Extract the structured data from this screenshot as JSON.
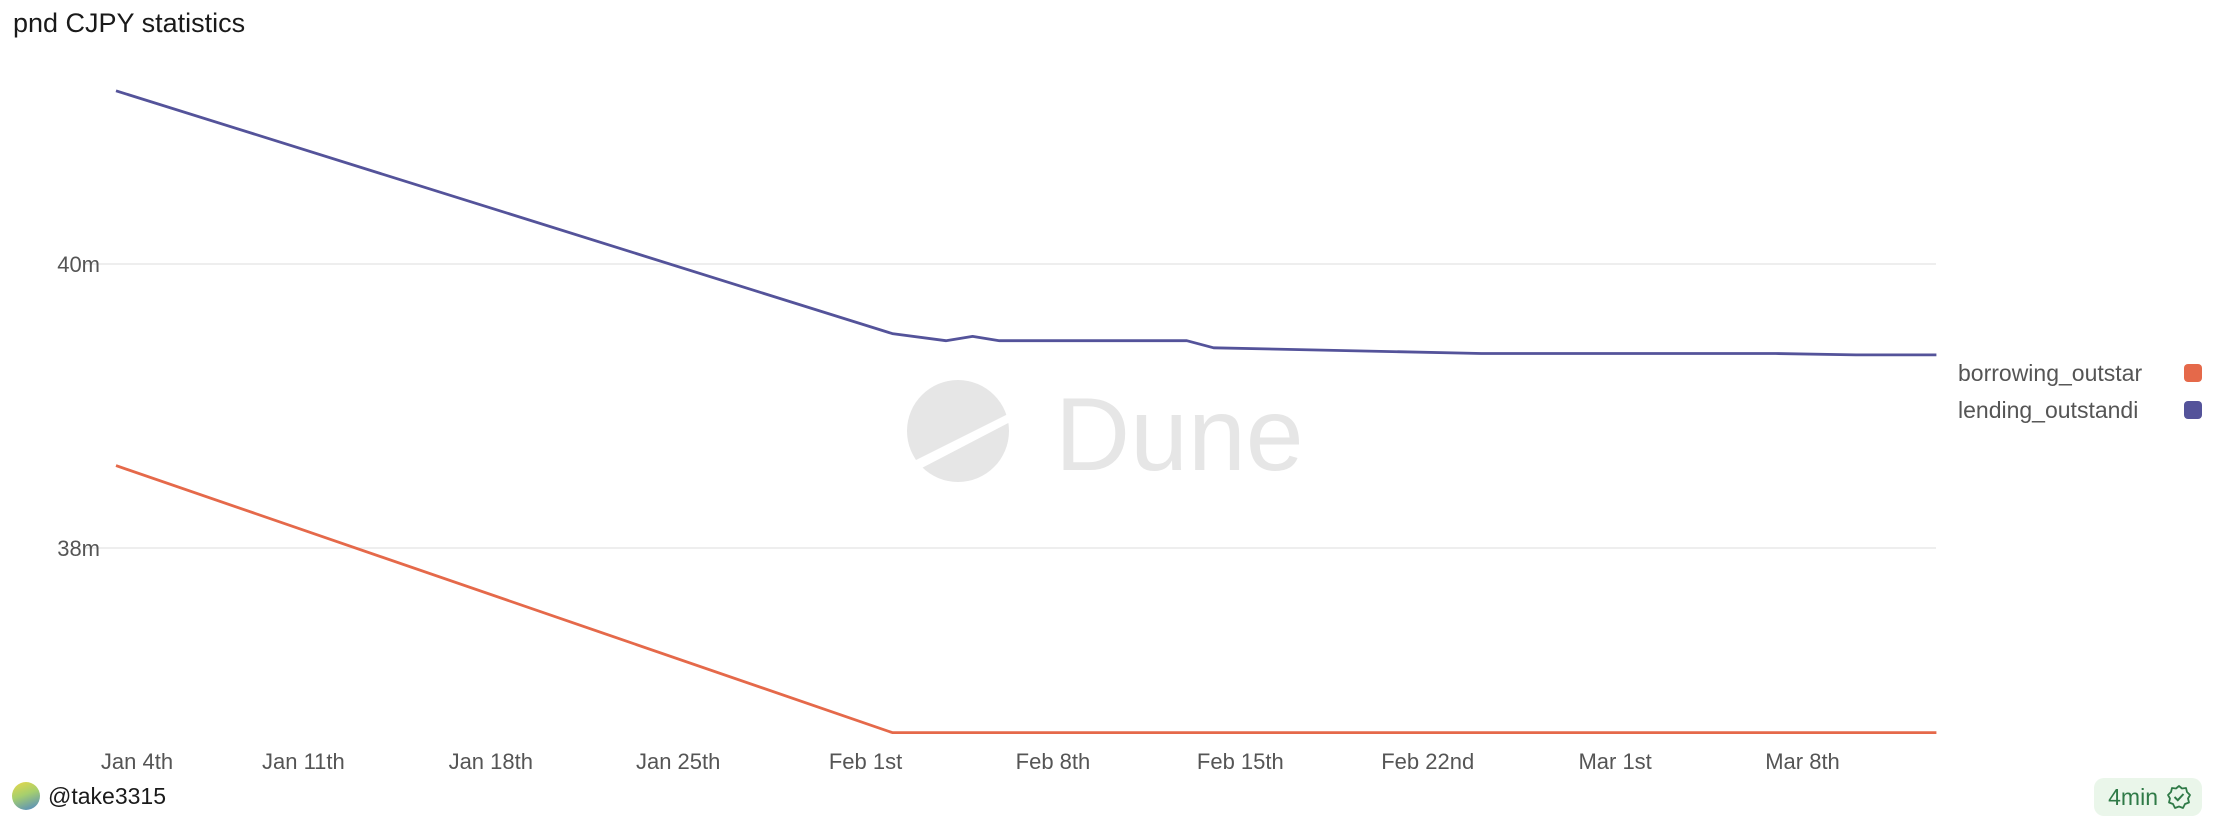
{
  "chart_data": {
    "type": "line",
    "title": "pnd CJPY statistics",
    "xlabel": "",
    "ylabel": "",
    "x_tick_labels": [
      "Jan 4th",
      "Jan 11th",
      "Jan 18th",
      "Jan 25th",
      "Feb 1st",
      "Feb 8th",
      "Feb 15th",
      "Feb 22nd",
      "Mar 1st",
      "Mar 8th"
    ],
    "y_ticks": [
      {
        "value": 38,
        "label": "38m"
      },
      {
        "value": 40,
        "label": "40m"
      }
    ],
    "ylim": [
      36.55,
      41.45
    ],
    "x_domain_days_from_jan4": [
      0,
      68
    ],
    "grid": true,
    "legend_position": "right",
    "series": [
      {
        "name": "borrowing_outstar",
        "color": "#e5694a",
        "points": [
          [
            0,
            38.58
          ],
          [
            29,
            36.7
          ],
          [
            68,
            36.7
          ]
        ]
      },
      {
        "name": "lending_outstandi",
        "color": "#54539a",
        "points": [
          [
            0,
            41.22
          ],
          [
            29,
            39.51
          ],
          [
            31,
            39.46
          ],
          [
            32,
            39.49
          ],
          [
            33,
            39.46
          ],
          [
            40,
            39.46
          ],
          [
            41,
            39.41
          ],
          [
            51,
            39.37
          ],
          [
            62,
            39.37
          ],
          [
            65,
            39.36
          ],
          [
            68,
            39.36
          ]
        ]
      }
    ]
  },
  "watermark": {
    "text": "Dune"
  },
  "footer": {
    "user": "@take3315",
    "refresh": "4min"
  }
}
